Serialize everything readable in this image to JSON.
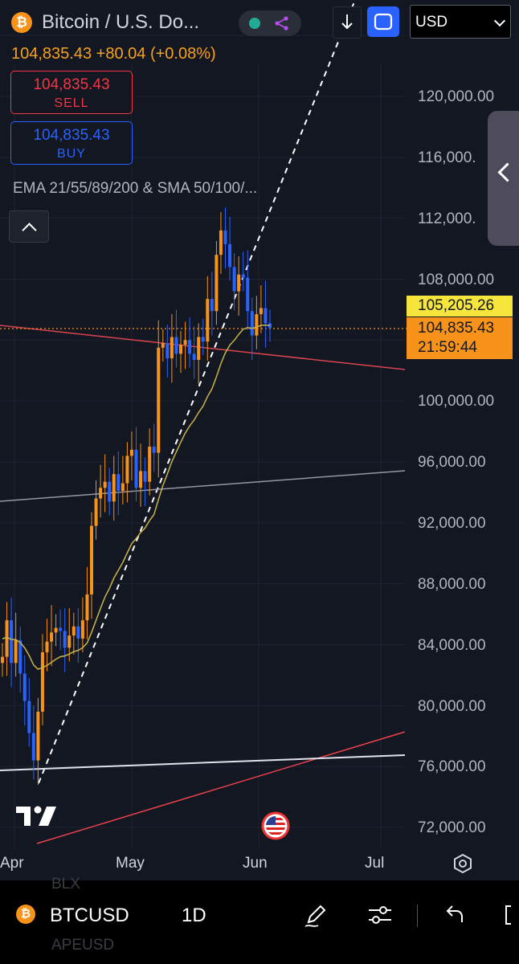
{
  "header": {
    "symbol_title": "Bitcoin / U.S. Do...",
    "currency": "USD",
    "price_line": "104,835.43 +80.04 (+0.08%)",
    "sell": {
      "price": "104,835.43",
      "label": "SELL"
    },
    "buy": {
      "price": "104,835.43",
      "label": "BUY"
    },
    "indicator_label": "EMA 21/55/89/200 & SMA 50/100/..."
  },
  "price_axis": {
    "labels": [
      "120,000.00",
      "116,000.",
      "112,000.",
      "108,000.00",
      "100,000.00",
      "96,000.00",
      "92,000.00",
      "88,000.00",
      "84,000.00",
      "80,000.00",
      "76,000.00",
      "72,000.00"
    ],
    "high_tag": "105,205.26",
    "last_tag": "104,835.43",
    "countdown": "21:59:44"
  },
  "time_axis": {
    "labels": [
      "Apr",
      "May",
      "Jun",
      "Jul"
    ]
  },
  "bottom_bar": {
    "symbol": "BTCUSD",
    "interval": "1D",
    "ghost_top": "BLX",
    "ghost_bottom": "APEUSD"
  },
  "colors": {
    "up": "#f7931a",
    "down": "#2962ff",
    "background": "#131722",
    "ema": "#c8b447",
    "support_red": "#f23645"
  },
  "icons": [
    "bitcoin-icon",
    "share-icon",
    "download-icon",
    "fullscreen-icon",
    "chevron-up-icon",
    "chevron-left-icon",
    "tradingview-logo",
    "us-flag-icon",
    "gear-icon",
    "pen-icon",
    "sliders-icon",
    "undo-icon"
  ]
}
